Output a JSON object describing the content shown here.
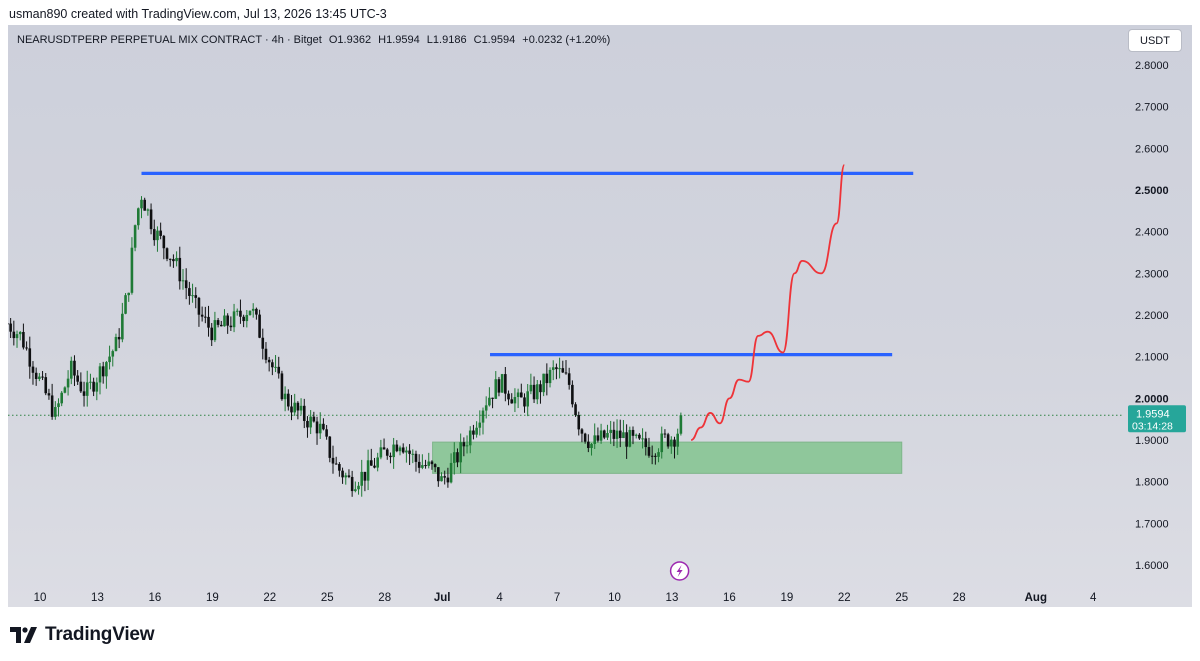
{
  "header": {
    "attribution": "usman890 created with TradingView.com, Jul 13, 2026 13:45 UTC-3"
  },
  "symbol": {
    "name": "NEARUSDTPERP PERPETUAL MIX CONTRACT · 4h · Bitget",
    "open": "O1.9362",
    "high": "H1.9594",
    "low": "L1.9186",
    "close": "C1.9594",
    "change": "+0.0232 (+1.20%)"
  },
  "currency_button": "USDT",
  "price_label": {
    "price": "1.9594",
    "countdown": "03:14:28",
    "color": "#26a69a"
  },
  "footer": {
    "brand": "TradingView"
  },
  "colors": {
    "bull": "#1f7a36",
    "bear": "#0f1012",
    "level_line": "#2962ff",
    "zone": "#7ec38a",
    "projection": "#ee3338"
  },
  "chart_data": {
    "type": "candlestick",
    "timeframe": "4h",
    "ylim": [
      1.55,
      2.88
    ],
    "y_ticks": [
      "2.8000",
      "2.7000",
      "2.6000",
      "2.5000",
      "2.4000",
      "2.3000",
      "2.2000",
      "2.1000",
      "2.0000",
      "1.9000",
      "1.8000",
      "1.7000",
      "1.6000"
    ],
    "x_ticks": [
      {
        "label": "10",
        "day": 10
      },
      {
        "label": "13",
        "day": 13
      },
      {
        "label": "16",
        "day": 16
      },
      {
        "label": "19",
        "day": 19
      },
      {
        "label": "22",
        "day": 22
      },
      {
        "label": "25",
        "day": 25
      },
      {
        "label": "28",
        "day": 28
      },
      {
        "label": "Jul",
        "day": 31
      },
      {
        "label": "4",
        "day": 34
      },
      {
        "label": "7",
        "day": 37
      },
      {
        "label": "10",
        "day": 40
      },
      {
        "label": "13",
        "day": 43
      },
      {
        "label": "16",
        "day": 46
      },
      {
        "label": "19",
        "day": 49
      },
      {
        "label": "22",
        "day": 52
      },
      {
        "label": "25",
        "day": 55
      },
      {
        "label": "28",
        "day": 58
      },
      {
        "label": "Aug",
        "day": 62
      },
      {
        "label": "4",
        "day": 65
      }
    ],
    "x_range_days": [
      8.3,
      66.5
    ],
    "current_price": 1.9594,
    "price_path": [
      [
        8.3,
        2.18
      ],
      [
        9.0,
        2.15
      ],
      [
        10.0,
        2.04
      ],
      [
        10.8,
        1.96
      ],
      [
        11.6,
        2.07
      ],
      [
        12.4,
        2.01
      ],
      [
        13.2,
        2.07
      ],
      [
        14.0,
        2.13
      ],
      [
        14.6,
        2.26
      ],
      [
        15.0,
        2.43
      ],
      [
        15.3,
        2.49
      ],
      [
        16.0,
        2.4
      ],
      [
        17.0,
        2.33
      ],
      [
        17.6,
        2.27
      ],
      [
        18.2,
        2.21
      ],
      [
        19.0,
        2.16
      ],
      [
        20.2,
        2.19
      ],
      [
        21.0,
        2.22
      ],
      [
        22.0,
        2.09
      ],
      [
        22.8,
        2.0
      ],
      [
        23.6,
        1.96
      ],
      [
        24.6,
        1.93
      ],
      [
        25.4,
        1.84
      ],
      [
        26.2,
        1.8
      ],
      [
        27.0,
        1.82
      ],
      [
        28.0,
        1.87
      ],
      [
        28.8,
        1.9
      ],
      [
        29.6,
        1.85
      ],
      [
        30.5,
        1.83
      ],
      [
        31.0,
        1.8
      ],
      [
        31.8,
        1.86
      ],
      [
        32.6,
        1.93
      ],
      [
        33.2,
        1.99
      ],
      [
        34.0,
        2.04
      ],
      [
        35.0,
        1.99
      ],
      [
        36.0,
        2.02
      ],
      [
        36.9,
        2.07
      ],
      [
        37.6,
        2.04
      ],
      [
        38.2,
        1.93
      ],
      [
        38.8,
        1.89
      ],
      [
        39.6,
        1.91
      ],
      [
        40.4,
        1.91
      ],
      [
        41.2,
        1.89
      ],
      [
        42.0,
        1.88
      ],
      [
        42.6,
        1.9
      ],
      [
        43.2,
        1.91
      ],
      [
        43.6,
        1.9594
      ]
    ],
    "horizontal_lines": [
      {
        "price": 2.54,
        "from_day": 15.3,
        "to_day": 55.6
      },
      {
        "price": 2.105,
        "from_day": 33.5,
        "to_day": 54.5
      }
    ],
    "zone": {
      "price_top": 1.895,
      "price_bottom": 1.82,
      "from_day": 30.5,
      "to_day": 55.0
    },
    "projection": [
      [
        44.0,
        1.9
      ],
      [
        44.5,
        1.93
      ],
      [
        45.0,
        1.965
      ],
      [
        45.5,
        1.94
      ],
      [
        46.0,
        2.0
      ],
      [
        46.5,
        2.045
      ],
      [
        47.0,
        2.04
      ],
      [
        47.5,
        2.15
      ],
      [
        48.0,
        2.16
      ],
      [
        48.8,
        2.11
      ],
      [
        49.4,
        2.3
      ],
      [
        49.8,
        2.33
      ],
      [
        50.8,
        2.3
      ],
      [
        51.6,
        2.42
      ],
      [
        52.0,
        2.56
      ]
    ]
  }
}
